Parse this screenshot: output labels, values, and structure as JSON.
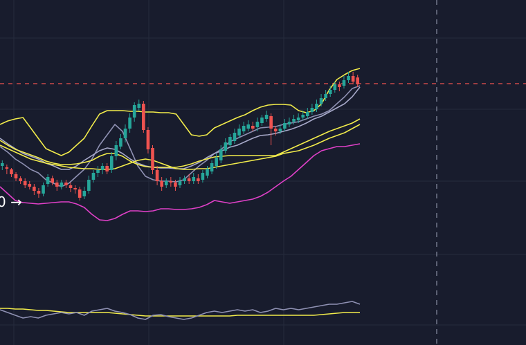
{
  "chart_data": [
    {
      "type": "candlestick",
      "panel": "price",
      "colors": {
        "background": "#181c2d",
        "grid": "#262b3d",
        "up": "#26a69a",
        "down": "#ef5350",
        "bb_upper": "#f2ec4b",
        "ma_fast": "#f2ec4b",
        "ma_slow": "#f2ec4b",
        "ma_gray1": "#8f91b3",
        "ma_gray2": "#a7a9c9",
        "bb_lower": "#e040c8",
        "price_line": "#ef5350",
        "crosshair": "#8a8fa3"
      },
      "grid": true,
      "price_line_value": 121,
      "label_text": "0 →",
      "candles": [
        [
          240,
          236,
          232,
          246
        ],
        [
          242,
          244,
          238,
          252
        ],
        [
          245,
          252,
          243,
          256
        ],
        [
          252,
          258,
          249,
          262
        ],
        [
          258,
          262,
          255,
          266
        ],
        [
          262,
          268,
          258,
          272
        ],
        [
          266,
          270,
          262,
          274
        ],
        [
          270,
          276,
          266,
          282
        ],
        [
          276,
          280,
          272,
          286
        ],
        [
          280,
          268,
          264,
          284
        ],
        [
          266,
          256,
          252,
          270
        ],
        [
          258,
          264,
          254,
          268
        ],
        [
          264,
          270,
          260,
          276
        ],
        [
          270,
          264,
          260,
          274
        ],
        [
          264,
          268,
          260,
          272
        ],
        [
          268,
          272,
          264,
          278
        ],
        [
          272,
          274,
          268,
          280
        ],
        [
          274,
          286,
          270,
          290
        ],
        [
          284,
          276,
          270,
          288
        ],
        [
          276,
          260,
          254,
          280
        ],
        [
          260,
          250,
          246,
          264
        ],
        [
          250,
          246,
          240,
          256
        ],
        [
          246,
          240,
          236,
          252
        ],
        [
          240,
          248,
          236,
          252
        ],
        [
          246,
          226,
          220,
          250
        ],
        [
          226,
          210,
          204,
          232
        ],
        [
          212,
          200,
          194,
          216
        ],
        [
          200,
          186,
          180,
          206
        ],
        [
          186,
          170,
          164,
          192
        ],
        [
          170,
          152,
          148,
          176
        ],
        [
          156,
          150,
          144,
          160
        ],
        [
          150,
          188,
          146,
          192
        ],
        [
          188,
          216,
          184,
          222
        ],
        [
          214,
          246,
          210,
          252
        ],
        [
          246,
          262,
          240,
          268
        ],
        [
          262,
          270,
          256,
          276
        ],
        [
          268,
          262,
          258,
          272
        ],
        [
          262,
          264,
          256,
          270
        ],
        [
          264,
          270,
          260,
          276
        ],
        [
          268,
          262,
          256,
          272
        ],
        [
          262,
          258,
          254,
          266
        ],
        [
          258,
          262,
          252,
          266
        ],
        [
          262,
          256,
          250,
          266
        ],
        [
          258,
          262,
          252,
          266
        ],
        [
          260,
          250,
          246,
          264
        ],
        [
          254,
          244,
          240,
          258
        ],
        [
          248,
          236,
          232,
          252
        ],
        [
          240,
          228,
          222,
          244
        ],
        [
          232,
          216,
          210,
          236
        ],
        [
          218,
          206,
          200,
          222
        ],
        [
          210,
          198,
          194,
          214
        ],
        [
          204,
          192,
          186,
          208
        ],
        [
          196,
          186,
          180,
          200
        ],
        [
          190,
          182,
          176,
          194
        ],
        [
          186,
          180,
          174,
          190
        ],
        [
          182,
          186,
          176,
          190
        ],
        [
          184,
          176,
          170,
          190
        ],
        [
          178,
          170,
          166,
          182
        ],
        [
          172,
          166,
          160,
          176
        ],
        [
          168,
          186,
          164,
          210
        ],
        [
          186,
          190,
          182,
          196
        ],
        [
          190,
          186,
          180,
          194
        ],
        [
          186,
          178,
          172,
          190
        ],
        [
          180,
          176,
          170,
          184
        ],
        [
          176,
          172,
          166,
          180
        ],
        [
          174,
          170,
          164,
          178
        ],
        [
          170,
          166,
          160,
          174
        ],
        [
          168,
          162,
          156,
          172
        ],
        [
          162,
          156,
          150,
          166
        ],
        [
          158,
          150,
          144,
          162
        ],
        [
          150,
          142,
          136,
          154
        ],
        [
          142,
          136,
          130,
          146
        ],
        [
          136,
          130,
          124,
          140
        ],
        [
          130,
          122,
          118,
          134
        ],
        [
          122,
          126,
          118,
          132
        ],
        [
          124,
          116,
          110,
          128
        ],
        [
          116,
          110,
          104,
          120
        ],
        [
          110,
          118,
          104,
          122
        ],
        [
          112,
          122,
          108,
          126
        ]
      ],
      "series": [
        {
          "name": "",
          "role": "bb_upper",
          "values": [
            180,
            175,
            172,
            170,
            185,
            200,
            215,
            220,
            225,
            220,
            210,
            200,
            182,
            165,
            160,
            160,
            160,
            161,
            161,
            162,
            162,
            163,
            163,
            165,
            180,
            195,
            197,
            195,
            185,
            180,
            175,
            170,
            166,
            160,
            155,
            152,
            151,
            151,
            152,
            160,
            163,
            160,
            150,
            130,
            115,
            108,
            102,
            99
          ]
        },
        {
          "name": "",
          "role": "ma_gray1",
          "values": [
            212,
            220,
            230,
            237,
            245,
            250,
            260,
            265,
            270,
            265,
            255,
            245,
            230,
            210,
            195,
            180,
            190,
            215,
            240,
            255,
            260,
            262,
            262,
            263,
            260,
            250,
            240,
            232,
            222,
            215,
            205,
            200,
            195,
            190,
            185,
            184,
            183,
            180,
            178,
            176,
            172,
            168,
            165,
            160,
            150,
            140,
            128,
            124
          ]
        },
        {
          "name": "",
          "role": "ma_gray2",
          "values": [
            200,
            208,
            215,
            222,
            226,
            230,
            236,
            240,
            245,
            245,
            240,
            232,
            225,
            218,
            214,
            216,
            222,
            230,
            236,
            240,
            242,
            243,
            243,
            244,
            244,
            240,
            235,
            228,
            222,
            218,
            213,
            210,
            205,
            200,
            196,
            195,
            193,
            190,
            187,
            183,
            178,
            172,
            168,
            162,
            156,
            150,
            140,
            126
          ]
        },
        {
          "name": "",
          "role": "ma_fast",
          "values": [
            203,
            210,
            216,
            220,
            224,
            228,
            233,
            236,
            238,
            238,
            237,
            235,
            232,
            226,
            222,
            222,
            226,
            233,
            238,
            241,
            242,
            242,
            242,
            242,
            240,
            237,
            233,
            230,
            227,
            226,
            225,
            225,
            225,
            225,
            225,
            225,
            225,
            220,
            215,
            210,
            205,
            200,
            195,
            190,
            186,
            182,
            178,
            172
          ]
        },
        {
          "name": "",
          "role": "ma_slow",
          "values": [
            210,
            215,
            220,
            225,
            230,
            233,
            236,
            238,
            240,
            242,
            243,
            244,
            244,
            245,
            245,
            244,
            240,
            236,
            232,
            230,
            232,
            236,
            240,
            244,
            245,
            245,
            244,
            244,
            242,
            240,
            238,
            236,
            234,
            232,
            230,
            228,
            226,
            222,
            220,
            218,
            214,
            210,
            205,
            200,
            196,
            192,
            186,
            180
          ]
        },
        {
          "name": "",
          "role": "bb_lower",
          "values": [
            270,
            280,
            290,
            293,
            294,
            295,
            294,
            293,
            292,
            292,
            295,
            300,
            310,
            318,
            319,
            316,
            310,
            305,
            305,
            306,
            305,
            302,
            302,
            303,
            303,
            302,
            300,
            296,
            290,
            292,
            294,
            292,
            290,
            288,
            284,
            278,
            270,
            262,
            255,
            245,
            235,
            225,
            218,
            215,
            212,
            212,
            210,
            208
          ]
        }
      ],
      "xlabel": "",
      "ylabel": ""
    },
    {
      "type": "line",
      "panel": "indicator",
      "series": [
        {
          "name": "",
          "role": "osc_yellow",
          "values": [
            446,
            446,
            447,
            447,
            448,
            449,
            449,
            450,
            451,
            452,
            452,
            452,
            452,
            452,
            452,
            453,
            454,
            455,
            456,
            457,
            457,
            457,
            457,
            457,
            457,
            457,
            457,
            457,
            457,
            457,
            457,
            456,
            456,
            456,
            456,
            456,
            456,
            456,
            456,
            456,
            456,
            456,
            455,
            454,
            453,
            452,
            452,
            452
          ]
        },
        {
          "name": "",
          "role": "osc_gray",
          "values": [
            448,
            452,
            456,
            460,
            458,
            460,
            456,
            454,
            452,
            454,
            452,
            456,
            450,
            448,
            446,
            450,
            452,
            455,
            460,
            462,
            456,
            455,
            458,
            460,
            462,
            460,
            456,
            452,
            450,
            452,
            450,
            448,
            450,
            448,
            452,
            450,
            446,
            448,
            446,
            448,
            446,
            444,
            442,
            440,
            440,
            438,
            436,
            440
          ]
        }
      ],
      "xlabel": "",
      "ylabel": ""
    }
  ]
}
